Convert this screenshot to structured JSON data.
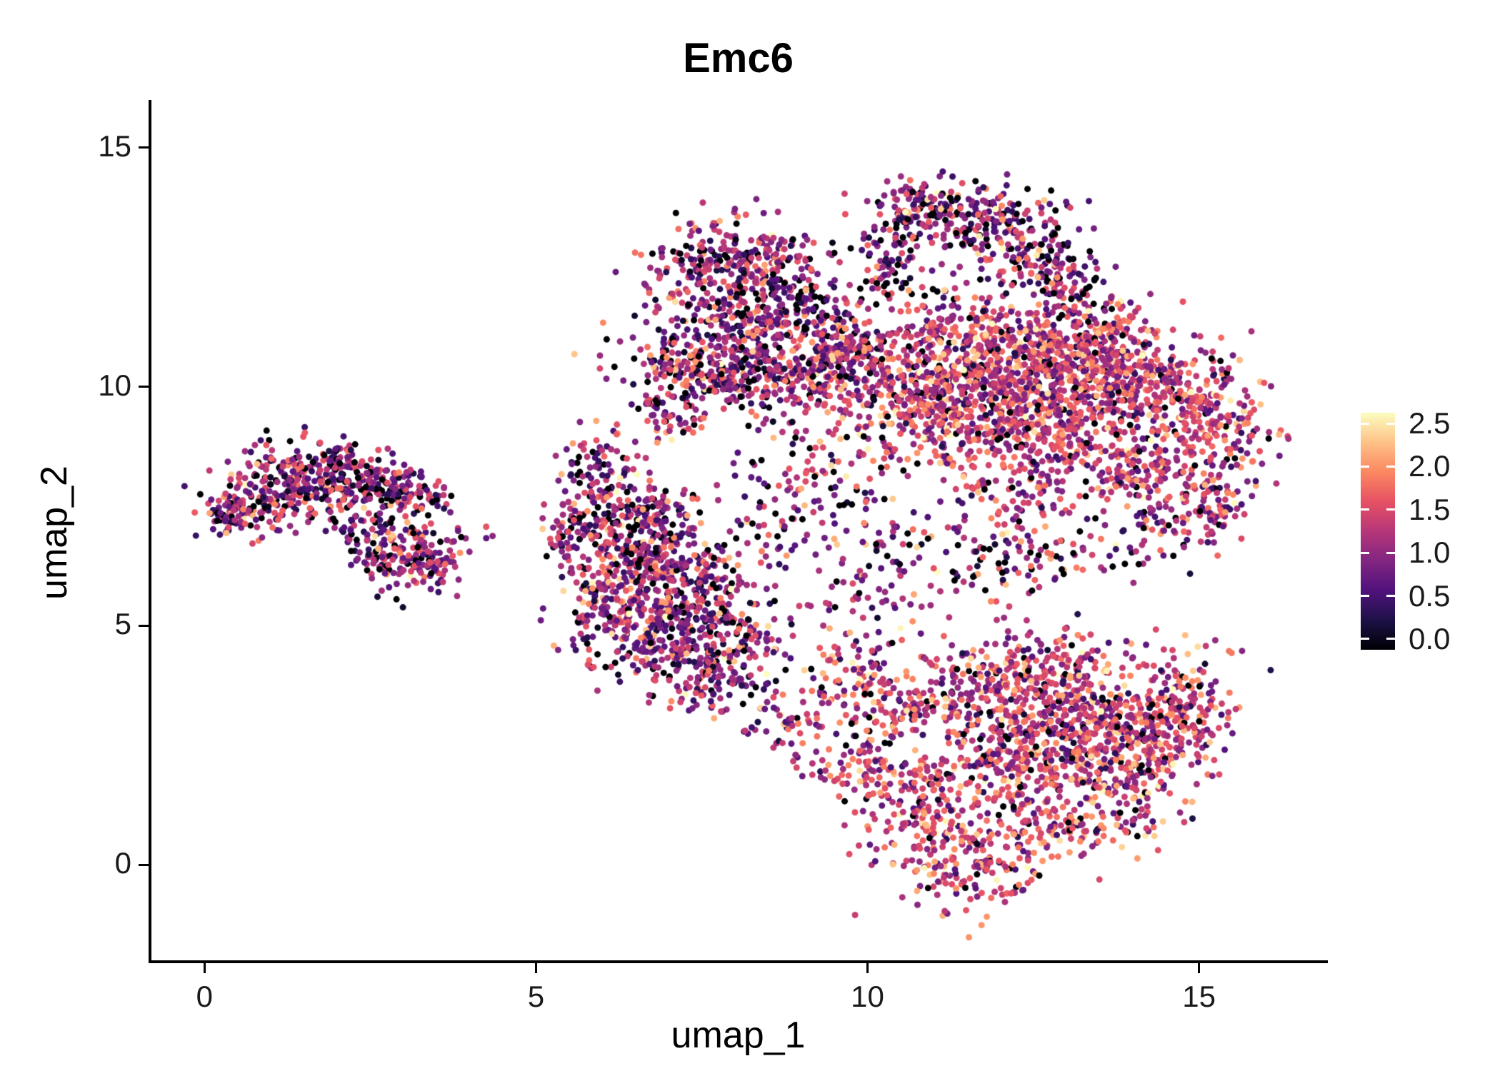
{
  "chart_data": {
    "type": "scatter",
    "title": "Emc6",
    "xlabel": "umap_1",
    "ylabel": "umap_2",
    "xlim": [
      -0.8,
      16.9
    ],
    "ylim": [
      -2.0,
      16.0
    ],
    "x_ticks": [
      0,
      5,
      10,
      15
    ],
    "x_tick_labels": [
      "0",
      "5",
      "10",
      "15"
    ],
    "y_ticks": [
      0,
      5,
      10,
      15
    ],
    "y_tick_labels": [
      "0",
      "5",
      "10",
      "15"
    ],
    "grid": false,
    "legend_position": "right",
    "point_radius_px": 4.5,
    "seed": 1234,
    "colormap": {
      "name": "magma",
      "stops": [
        "#000004",
        "#1d1147",
        "#51127c",
        "#822681",
        "#b63679",
        "#e65164",
        "#fb8861",
        "#fec287",
        "#fcfdbf"
      ]
    },
    "colorbar": {
      "vmin": 0.0,
      "vmax": 2.5,
      "pad_frac": 0.05,
      "tick_values": [
        2.5,
        2.0,
        1.5,
        1.0,
        0.5,
        0.0
      ],
      "tick_labels": [
        "2.5",
        "2.0",
        "1.5",
        "1.0",
        "0.5",
        "0.0"
      ]
    },
    "cluster_fields": [
      "x",
      "y",
      "sx",
      "sy",
      "n",
      "value_mean",
      "value_sd",
      "zero_frac"
    ],
    "clusters": [
      [
        0.35,
        7.25,
        0.18,
        0.22,
        40,
        1.0,
        0.55,
        0.1
      ],
      [
        0.8,
        7.5,
        0.35,
        0.3,
        110,
        1.0,
        0.55,
        0.1
      ],
      [
        1.4,
        8.1,
        0.45,
        0.45,
        170,
        1.0,
        0.55,
        0.1
      ],
      [
        2.1,
        8.2,
        0.4,
        0.35,
        120,
        1.0,
        0.55,
        0.1
      ],
      [
        2.7,
        7.9,
        0.35,
        0.3,
        90,
        1.0,
        0.55,
        0.1
      ],
      [
        3.3,
        7.6,
        0.25,
        0.2,
        40,
        1.0,
        0.55,
        0.1
      ],
      [
        3.0,
        6.4,
        0.35,
        0.35,
        140,
        1.0,
        0.55,
        0.1
      ],
      [
        3.5,
        6.3,
        0.2,
        0.25,
        40,
        1.0,
        0.55,
        0.1
      ],
      [
        4.1,
        6.9,
        0.25,
        0.1,
        6,
        1.0,
        0.55,
        0.1
      ],
      [
        2.4,
        7.2,
        0.3,
        0.3,
        40,
        1.0,
        0.55,
        0.1
      ],
      [
        5.6,
        7.1,
        0.25,
        0.45,
        70,
        1.05,
        0.55,
        0.09
      ],
      [
        5.95,
        8.3,
        0.3,
        0.45,
        80,
        1.05,
        0.55,
        0.09
      ],
      [
        6.35,
        6.6,
        0.45,
        0.5,
        170,
        1.05,
        0.55,
        0.09
      ],
      [
        7.1,
        6.2,
        0.5,
        0.55,
        200,
        1.05,
        0.55,
        0.09
      ],
      [
        6.2,
        5.3,
        0.45,
        0.45,
        150,
        1.05,
        0.55,
        0.09
      ],
      [
        7.0,
        4.6,
        0.5,
        0.5,
        170,
        1.05,
        0.55,
        0.09
      ],
      [
        7.8,
        5.3,
        0.4,
        0.5,
        120,
        1.05,
        0.55,
        0.09
      ],
      [
        7.6,
        3.9,
        0.35,
        0.4,
        90,
        1.05,
        0.55,
        0.09
      ],
      [
        6.6,
        7.4,
        0.4,
        0.35,
        90,
        1.05,
        0.55,
        0.09
      ],
      [
        8.3,
        4.4,
        0.25,
        0.35,
        40,
        1.05,
        0.55,
        0.09
      ],
      [
        8.5,
        3.2,
        0.3,
        0.3,
        25,
        1.05,
        0.55,
        0.09
      ],
      [
        7.5,
        12.4,
        0.45,
        0.5,
        150,
        1.05,
        0.55,
        0.1
      ],
      [
        8.4,
        12.7,
        0.45,
        0.45,
        140,
        1.05,
        0.55,
        0.1
      ],
      [
        8.9,
        11.6,
        0.45,
        0.5,
        130,
        1.05,
        0.55,
        0.1
      ],
      [
        7.2,
        10.6,
        0.45,
        0.5,
        150,
        1.05,
        0.55,
        0.1
      ],
      [
        8.1,
        10.3,
        0.55,
        0.45,
        200,
        1.05,
        0.55,
        0.1
      ],
      [
        9.2,
        10.3,
        0.45,
        0.45,
        150,
        1.05,
        0.55,
        0.1
      ],
      [
        7.0,
        9.4,
        0.3,
        0.3,
        50,
        1.05,
        0.55,
        0.1
      ],
      [
        9.8,
        11.0,
        0.35,
        0.55,
        90,
        1.05,
        0.55,
        0.1
      ],
      [
        8.2,
        11.4,
        0.4,
        0.4,
        100,
        1.05,
        0.55,
        0.1
      ],
      [
        10.9,
        13.8,
        0.45,
        0.3,
        110,
        1.0,
        0.6,
        0.12
      ],
      [
        11.8,
        13.5,
        0.5,
        0.4,
        150,
        1.0,
        0.6,
        0.12
      ],
      [
        12.5,
        12.8,
        0.4,
        0.4,
        110,
        1.0,
        0.6,
        0.12
      ],
      [
        10.4,
        13.1,
        0.3,
        0.35,
        60,
        1.0,
        0.6,
        0.12
      ],
      [
        13.1,
        12.1,
        0.35,
        0.35,
        70,
        1.0,
        0.6,
        0.12
      ],
      [
        10.3,
        12.3,
        0.25,
        0.3,
        35,
        1.0,
        0.6,
        0.12
      ],
      [
        10.6,
        9.4,
        0.55,
        0.6,
        220,
        1.35,
        0.5,
        0.06
      ],
      [
        11.5,
        10.3,
        0.5,
        0.5,
        200,
        1.35,
        0.5,
        0.06
      ],
      [
        12.4,
        9.9,
        0.55,
        0.55,
        260,
        1.35,
        0.5,
        0.06
      ],
      [
        13.4,
        10.4,
        0.55,
        0.5,
        260,
        1.35,
        0.5,
        0.06
      ],
      [
        14.4,
        9.9,
        0.55,
        0.55,
        240,
        1.35,
        0.5,
        0.06
      ],
      [
        15.3,
        9.3,
        0.4,
        0.7,
        140,
        1.35,
        0.5,
        0.06
      ],
      [
        13.1,
        8.9,
        0.5,
        0.45,
        180,
        1.35,
        0.5,
        0.06
      ],
      [
        14.2,
        8.2,
        0.45,
        0.45,
        130,
        1.35,
        0.5,
        0.06
      ],
      [
        15.2,
        7.6,
        0.35,
        0.4,
        80,
        1.35,
        0.5,
        0.06
      ],
      [
        11.3,
        11.3,
        0.45,
        0.4,
        110,
        1.35,
        0.5,
        0.06
      ],
      [
        12.4,
        11.1,
        0.45,
        0.35,
        100,
        1.35,
        0.5,
        0.06
      ],
      [
        13.6,
        11.3,
        0.4,
        0.35,
        80,
        1.35,
        0.5,
        0.06
      ],
      [
        10.1,
        10.6,
        0.35,
        0.4,
        80,
        1.35,
        0.5,
        0.06
      ],
      [
        11.7,
        9.0,
        0.5,
        0.5,
        120,
        1.35,
        0.5,
        0.06
      ],
      [
        12.2,
        7.6,
        0.4,
        0.4,
        70,
        1.35,
        0.5,
        0.06
      ],
      [
        9.3,
        8.2,
        0.6,
        0.7,
        80,
        1.1,
        0.6,
        0.1
      ],
      [
        10.6,
        6.6,
        0.7,
        0.6,
        80,
        1.1,
        0.6,
        0.1
      ],
      [
        12.0,
        6.3,
        0.6,
        0.5,
        55,
        1.1,
        0.6,
        0.1
      ],
      [
        13.3,
        6.7,
        0.5,
        0.5,
        50,
        1.1,
        0.6,
        0.1
      ],
      [
        8.6,
        7.2,
        0.4,
        0.6,
        50,
        1.1,
        0.6,
        0.1
      ],
      [
        9.9,
        5.3,
        0.5,
        0.6,
        45,
        1.1,
        0.6,
        0.1
      ],
      [
        14.5,
        6.8,
        0.4,
        0.4,
        40,
        1.1,
        0.6,
        0.1
      ],
      [
        11.0,
        1.2,
        0.55,
        0.7,
        200,
        1.35,
        0.5,
        0.06
      ],
      [
        11.6,
        0.0,
        0.45,
        0.55,
        130,
        1.35,
        0.5,
        0.06
      ],
      [
        12.3,
        2.4,
        0.6,
        0.6,
        240,
        1.35,
        0.5,
        0.06
      ],
      [
        13.4,
        2.9,
        0.55,
        0.55,
        240,
        1.35,
        0.5,
        0.06
      ],
      [
        14.3,
        2.7,
        0.5,
        0.55,
        200,
        1.35,
        0.5,
        0.06
      ],
      [
        13.9,
        1.5,
        0.45,
        0.5,
        140,
        1.35,
        0.5,
        0.06
      ],
      [
        12.9,
        4.1,
        0.55,
        0.45,
        180,
        1.35,
        0.5,
        0.06
      ],
      [
        11.6,
        3.6,
        0.5,
        0.45,
        140,
        1.35,
        0.5,
        0.06
      ],
      [
        10.4,
        3.4,
        0.45,
        0.45,
        110,
        1.35,
        0.5,
        0.06
      ],
      [
        9.6,
        4.0,
        0.35,
        0.35,
        60,
        1.35,
        0.5,
        0.06
      ],
      [
        14.9,
        3.6,
        0.35,
        0.5,
        90,
        1.35,
        0.5,
        0.06
      ],
      [
        12.7,
        0.8,
        0.5,
        0.5,
        120,
        1.35,
        0.5,
        0.06
      ],
      [
        9.2,
        2.6,
        0.4,
        0.5,
        50,
        1.35,
        0.5,
        0.06
      ],
      [
        10.1,
        2.0,
        0.4,
        0.4,
        60,
        1.35,
        0.5,
        0.06
      ]
    ]
  }
}
